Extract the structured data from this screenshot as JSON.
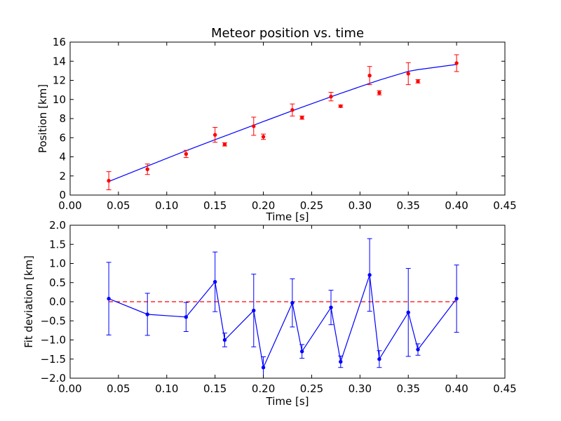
{
  "chart_data": [
    {
      "type": "scatter",
      "title": "Meteor position vs. time",
      "xlabel": "Time [s]",
      "ylabel": "Position [km]",
      "xlim": [
        0.0,
        0.45
      ],
      "ylim": [
        0,
        16
      ],
      "xticks": [
        "0.00",
        "0.05",
        "0.10",
        "0.15",
        "0.20",
        "0.25",
        "0.30",
        "0.35",
        "0.40",
        "0.45"
      ],
      "yticks": [
        "0",
        "2",
        "4",
        "6",
        "8",
        "10",
        "12",
        "14",
        "16"
      ],
      "grid": false,
      "marker_color": "#ff0000",
      "line_color": "#0000ff",
      "points": {
        "x": [
          0.04,
          0.08,
          0.12,
          0.15,
          0.16,
          0.19,
          0.2,
          0.23,
          0.24,
          0.27,
          0.28,
          0.31,
          0.32,
          0.35,
          0.36,
          0.4
        ],
        "y": [
          1.5,
          2.7,
          4.3,
          6.3,
          5.3,
          7.2,
          6.1,
          8.9,
          8.1,
          10.3,
          9.3,
          12.5,
          10.7,
          12.7,
          11.9,
          13.8
        ],
        "err": [
          0.95,
          0.55,
          0.38,
          0.78,
          0.17,
          0.95,
          0.28,
          0.63,
          0.17,
          0.45,
          0.12,
          0.95,
          0.22,
          1.15,
          0.18,
          0.88
        ]
      },
      "fit": {
        "x": [
          0.04,
          0.08,
          0.12,
          0.15,
          0.16,
          0.19,
          0.2,
          0.23,
          0.24,
          0.27,
          0.28,
          0.31,
          0.32,
          0.35,
          0.36,
          0.4
        ],
        "y": [
          1.42,
          3.03,
          4.64,
          5.79,
          6.17,
          7.31,
          7.69,
          8.82,
          9.19,
          10.28,
          10.64,
          11.68,
          12.02,
          12.94,
          13.12,
          13.66
        ]
      }
    },
    {
      "type": "scatter",
      "title": "",
      "xlabel": "Time [s]",
      "ylabel": "Fit deviation [km]",
      "xlim": [
        0.0,
        0.45
      ],
      "ylim": [
        -2.0,
        2.0
      ],
      "xticks": [
        "0.00",
        "0.05",
        "0.10",
        "0.15",
        "0.20",
        "0.25",
        "0.30",
        "0.35",
        "0.40",
        "0.45"
      ],
      "yticks": [
        "−2.0",
        "−1.5",
        "−1.0",
        "−0.5",
        "0.0",
        "0.5",
        "1.0",
        "1.5",
        "2.0"
      ],
      "grid": false,
      "line_color": "#0000ff",
      "reference_line": {
        "y": 0.0,
        "color": "#ff0000",
        "style": "dashed"
      },
      "points": {
        "x": [
          0.04,
          0.08,
          0.12,
          0.15,
          0.16,
          0.19,
          0.2,
          0.23,
          0.24,
          0.27,
          0.28,
          0.31,
          0.32,
          0.35,
          0.36,
          0.4
        ],
        "y": [
          0.08,
          -0.33,
          -0.4,
          0.52,
          -1.0,
          -0.23,
          -1.72,
          -0.03,
          -1.3,
          -0.15,
          -1.57,
          0.7,
          -1.5,
          -0.28,
          -1.25,
          0.08
        ],
        "err": [
          0.95,
          0.55,
          0.38,
          0.78,
          0.18,
          0.95,
          0.28,
          0.63,
          0.18,
          0.45,
          0.15,
          0.95,
          0.22,
          1.15,
          0.15,
          0.88
        ]
      }
    }
  ]
}
